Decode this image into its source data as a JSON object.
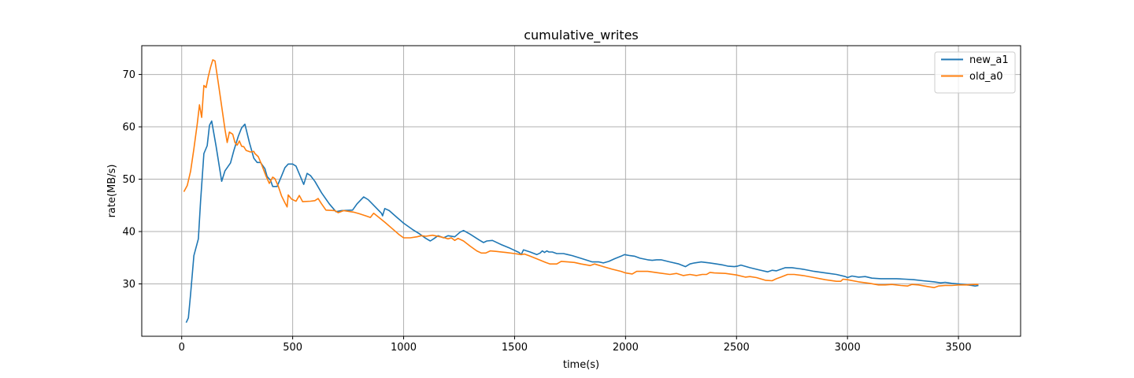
{
  "chart_data": {
    "type": "line",
    "title": "cumulative_writes",
    "xlabel": "time(s)",
    "ylabel": "rate(MB/s)",
    "xlim": [
      -180,
      3780
    ],
    "ylim": [
      20.0,
      75.5
    ],
    "xticks": [
      0,
      500,
      1000,
      1500,
      2000,
      2500,
      3000,
      3500
    ],
    "yticks": [
      30,
      40,
      50,
      60,
      70
    ],
    "grid": true,
    "legend_position": "top-right",
    "series": [
      {
        "name": "new_a1",
        "color": "#1f77b4",
        "points": [
          [
            20,
            22.6
          ],
          [
            30,
            23.5
          ],
          [
            40,
            28.0
          ],
          [
            55,
            35.4
          ],
          [
            75,
            38.6
          ],
          [
            85,
            45.8
          ],
          [
            100,
            54.9
          ],
          [
            115,
            56.4
          ],
          [
            125,
            60.3
          ],
          [
            135,
            61.1
          ],
          [
            155,
            56.3
          ],
          [
            180,
            49.6
          ],
          [
            195,
            51.6
          ],
          [
            220,
            53.1
          ],
          [
            235,
            55.5
          ],
          [
            255,
            58.2
          ],
          [
            270,
            59.8
          ],
          [
            285,
            60.5
          ],
          [
            305,
            57.0
          ],
          [
            325,
            54.0
          ],
          [
            340,
            53.2
          ],
          [
            355,
            53.2
          ],
          [
            375,
            52.0
          ],
          [
            385,
            50.5
          ],
          [
            400,
            49.8
          ],
          [
            410,
            48.6
          ],
          [
            430,
            48.6
          ],
          [
            450,
            50.6
          ],
          [
            465,
            52.2
          ],
          [
            480,
            52.9
          ],
          [
            500,
            52.9
          ],
          [
            515,
            52.5
          ],
          [
            530,
            51.0
          ],
          [
            545,
            49.5
          ],
          [
            550,
            49.0
          ],
          [
            565,
            51.1
          ],
          [
            580,
            50.7
          ],
          [
            600,
            49.6
          ],
          [
            630,
            47.4
          ],
          [
            665,
            45.3
          ],
          [
            695,
            43.8
          ],
          [
            720,
            44.0
          ],
          [
            770,
            44.1
          ],
          [
            790,
            45.3
          ],
          [
            820,
            46.6
          ],
          [
            840,
            46.1
          ],
          [
            870,
            44.8
          ],
          [
            900,
            43.5
          ],
          [
            905,
            43.0
          ],
          [
            915,
            44.4
          ],
          [
            935,
            44.0
          ],
          [
            970,
            42.7
          ],
          [
            1000,
            41.6
          ],
          [
            1040,
            40.4
          ],
          [
            1070,
            39.6
          ],
          [
            1100,
            38.7
          ],
          [
            1120,
            38.2
          ],
          [
            1135,
            38.6
          ],
          [
            1155,
            39.2
          ],
          [
            1180,
            38.8
          ],
          [
            1200,
            39.2
          ],
          [
            1230,
            39.0
          ],
          [
            1255,
            39.9
          ],
          [
            1270,
            40.2
          ],
          [
            1300,
            39.5
          ],
          [
            1340,
            38.4
          ],
          [
            1360,
            37.9
          ],
          [
            1375,
            38.2
          ],
          [
            1400,
            38.3
          ],
          [
            1440,
            37.5
          ],
          [
            1480,
            36.8
          ],
          [
            1520,
            36.0
          ],
          [
            1530,
            35.6
          ],
          [
            1540,
            36.5
          ],
          [
            1570,
            36.1
          ],
          [
            1600,
            35.6
          ],
          [
            1615,
            35.9
          ],
          [
            1625,
            36.3
          ],
          [
            1635,
            36.0
          ],
          [
            1645,
            36.3
          ],
          [
            1655,
            36.1
          ],
          [
            1670,
            36.1
          ],
          [
            1690,
            35.8
          ],
          [
            1720,
            35.8
          ],
          [
            1740,
            35.6
          ],
          [
            1760,
            35.4
          ],
          [
            1790,
            35.0
          ],
          [
            1820,
            34.6
          ],
          [
            1850,
            34.2
          ],
          [
            1880,
            34.2
          ],
          [
            1900,
            34.0
          ],
          [
            1925,
            34.3
          ],
          [
            1950,
            34.8
          ],
          [
            1980,
            35.3
          ],
          [
            1995,
            35.6
          ],
          [
            2020,
            35.4
          ],
          [
            2040,
            35.3
          ],
          [
            2065,
            34.9
          ],
          [
            2100,
            34.6
          ],
          [
            2120,
            34.5
          ],
          [
            2140,
            34.6
          ],
          [
            2160,
            34.6
          ],
          [
            2200,
            34.2
          ],
          [
            2240,
            33.8
          ],
          [
            2270,
            33.3
          ],
          [
            2290,
            33.8
          ],
          [
            2310,
            34.0
          ],
          [
            2340,
            34.2
          ],
          [
            2380,
            34.0
          ],
          [
            2410,
            33.8
          ],
          [
            2440,
            33.6
          ],
          [
            2460,
            33.4
          ],
          [
            2490,
            33.3
          ],
          [
            2505,
            33.4
          ],
          [
            2520,
            33.6
          ],
          [
            2560,
            33.1
          ],
          [
            2600,
            32.7
          ],
          [
            2640,
            32.3
          ],
          [
            2660,
            32.6
          ],
          [
            2680,
            32.5
          ],
          [
            2700,
            32.8
          ],
          [
            2720,
            33.1
          ],
          [
            2750,
            33.1
          ],
          [
            2800,
            32.8
          ],
          [
            2850,
            32.4
          ],
          [
            2900,
            32.1
          ],
          [
            2950,
            31.8
          ],
          [
            2990,
            31.4
          ],
          [
            3000,
            31.2
          ],
          [
            3020,
            31.5
          ],
          [
            3050,
            31.3
          ],
          [
            3080,
            31.4
          ],
          [
            3110,
            31.1
          ],
          [
            3150,
            31.0
          ],
          [
            3190,
            31.0
          ],
          [
            3220,
            31.0
          ],
          [
            3260,
            30.9
          ],
          [
            3300,
            30.8
          ],
          [
            3340,
            30.6
          ],
          [
            3390,
            30.4
          ],
          [
            3420,
            30.2
          ],
          [
            3440,
            30.3
          ],
          [
            3470,
            30.1
          ],
          [
            3500,
            30.0
          ],
          [
            3540,
            29.8
          ],
          [
            3560,
            29.7
          ],
          [
            3575,
            29.6
          ],
          [
            3590,
            29.7
          ]
        ]
      },
      {
        "name": "old_a0",
        "color": "#ff7f0e",
        "points": [
          [
            10,
            47.6
          ],
          [
            25,
            48.8
          ],
          [
            40,
            51.5
          ],
          [
            55,
            55.8
          ],
          [
            70,
            60.6
          ],
          [
            80,
            64.2
          ],
          [
            90,
            61.8
          ],
          [
            100,
            67.9
          ],
          [
            110,
            67.5
          ],
          [
            120,
            69.6
          ],
          [
            130,
            71.4
          ],
          [
            140,
            72.8
          ],
          [
            150,
            72.6
          ],
          [
            165,
            68.4
          ],
          [
            180,
            63.9
          ],
          [
            195,
            59.5
          ],
          [
            205,
            57.0
          ],
          [
            215,
            59.0
          ],
          [
            230,
            58.6
          ],
          [
            240,
            57.0
          ],
          [
            250,
            56.5
          ],
          [
            260,
            57.3
          ],
          [
            270,
            56.3
          ],
          [
            280,
            56.2
          ],
          [
            290,
            55.5
          ],
          [
            310,
            55.2
          ],
          [
            325,
            55.3
          ],
          [
            330,
            54.9
          ],
          [
            345,
            54.3
          ],
          [
            360,
            52.8
          ],
          [
            380,
            50.6
          ],
          [
            395,
            49.2
          ],
          [
            410,
            50.4
          ],
          [
            420,
            50.1
          ],
          [
            435,
            48.7
          ],
          [
            450,
            46.8
          ],
          [
            465,
            45.5
          ],
          [
            475,
            44.7
          ],
          [
            480,
            47.0
          ],
          [
            495,
            46.2
          ],
          [
            515,
            45.8
          ],
          [
            530,
            46.9
          ],
          [
            545,
            45.7
          ],
          [
            580,
            45.8
          ],
          [
            600,
            45.9
          ],
          [
            615,
            46.3
          ],
          [
            630,
            45.3
          ],
          [
            650,
            44.1
          ],
          [
            690,
            44.0
          ],
          [
            705,
            43.6
          ],
          [
            730,
            44.0
          ],
          [
            775,
            43.7
          ],
          [
            800,
            43.4
          ],
          [
            830,
            43.0
          ],
          [
            850,
            42.7
          ],
          [
            865,
            43.5
          ],
          [
            880,
            43.0
          ],
          [
            915,
            41.8
          ],
          [
            950,
            40.5
          ],
          [
            980,
            39.4
          ],
          [
            1000,
            38.8
          ],
          [
            1030,
            38.8
          ],
          [
            1060,
            39.0
          ],
          [
            1080,
            39.2
          ],
          [
            1100,
            39.1
          ],
          [
            1130,
            39.3
          ],
          [
            1165,
            39.0
          ],
          [
            1185,
            38.8
          ],
          [
            1200,
            38.6
          ],
          [
            1215,
            38.8
          ],
          [
            1230,
            38.3
          ],
          [
            1245,
            38.7
          ],
          [
            1270,
            38.2
          ],
          [
            1300,
            37.2
          ],
          [
            1330,
            36.3
          ],
          [
            1350,
            35.9
          ],
          [
            1370,
            35.9
          ],
          [
            1390,
            36.3
          ],
          [
            1420,
            36.2
          ],
          [
            1460,
            36.0
          ],
          [
            1500,
            35.8
          ],
          [
            1530,
            35.6
          ],
          [
            1545,
            35.7
          ],
          [
            1570,
            35.3
          ],
          [
            1600,
            34.8
          ],
          [
            1640,
            34.1
          ],
          [
            1660,
            33.8
          ],
          [
            1690,
            33.8
          ],
          [
            1710,
            34.3
          ],
          [
            1740,
            34.2
          ],
          [
            1770,
            34.1
          ],
          [
            1800,
            33.8
          ],
          [
            1840,
            33.5
          ],
          [
            1860,
            33.8
          ],
          [
            1900,
            33.3
          ],
          [
            1940,
            32.8
          ],
          [
            1980,
            32.4
          ],
          [
            2000,
            32.1
          ],
          [
            2030,
            31.9
          ],
          [
            2050,
            32.4
          ],
          [
            2080,
            32.4
          ],
          [
            2100,
            32.4
          ],
          [
            2150,
            32.1
          ],
          [
            2200,
            31.8
          ],
          [
            2230,
            32.0
          ],
          [
            2260,
            31.6
          ],
          [
            2290,
            31.8
          ],
          [
            2320,
            31.6
          ],
          [
            2345,
            31.8
          ],
          [
            2365,
            31.8
          ],
          [
            2380,
            32.2
          ],
          [
            2400,
            32.1
          ],
          [
            2450,
            32.0
          ],
          [
            2500,
            31.7
          ],
          [
            2540,
            31.3
          ],
          [
            2560,
            31.4
          ],
          [
            2590,
            31.2
          ],
          [
            2630,
            30.7
          ],
          [
            2660,
            30.6
          ],
          [
            2680,
            31.0
          ],
          [
            2700,
            31.3
          ],
          [
            2730,
            31.8
          ],
          [
            2760,
            31.8
          ],
          [
            2800,
            31.6
          ],
          [
            2850,
            31.2
          ],
          [
            2900,
            30.8
          ],
          [
            2950,
            30.5
          ],
          [
            2970,
            30.5
          ],
          [
            2980,
            30.9
          ],
          [
            3000,
            30.8
          ],
          [
            3050,
            30.4
          ],
          [
            3100,
            30.1
          ],
          [
            3140,
            29.8
          ],
          [
            3170,
            29.8
          ],
          [
            3200,
            29.9
          ],
          [
            3240,
            29.7
          ],
          [
            3270,
            29.6
          ],
          [
            3290,
            29.9
          ],
          [
            3320,
            29.8
          ],
          [
            3360,
            29.5
          ],
          [
            3390,
            29.3
          ],
          [
            3410,
            29.6
          ],
          [
            3440,
            29.7
          ],
          [
            3470,
            29.7
          ],
          [
            3500,
            29.8
          ],
          [
            3540,
            29.8
          ],
          [
            3570,
            29.9
          ],
          [
            3590,
            29.9
          ]
        ]
      }
    ]
  }
}
